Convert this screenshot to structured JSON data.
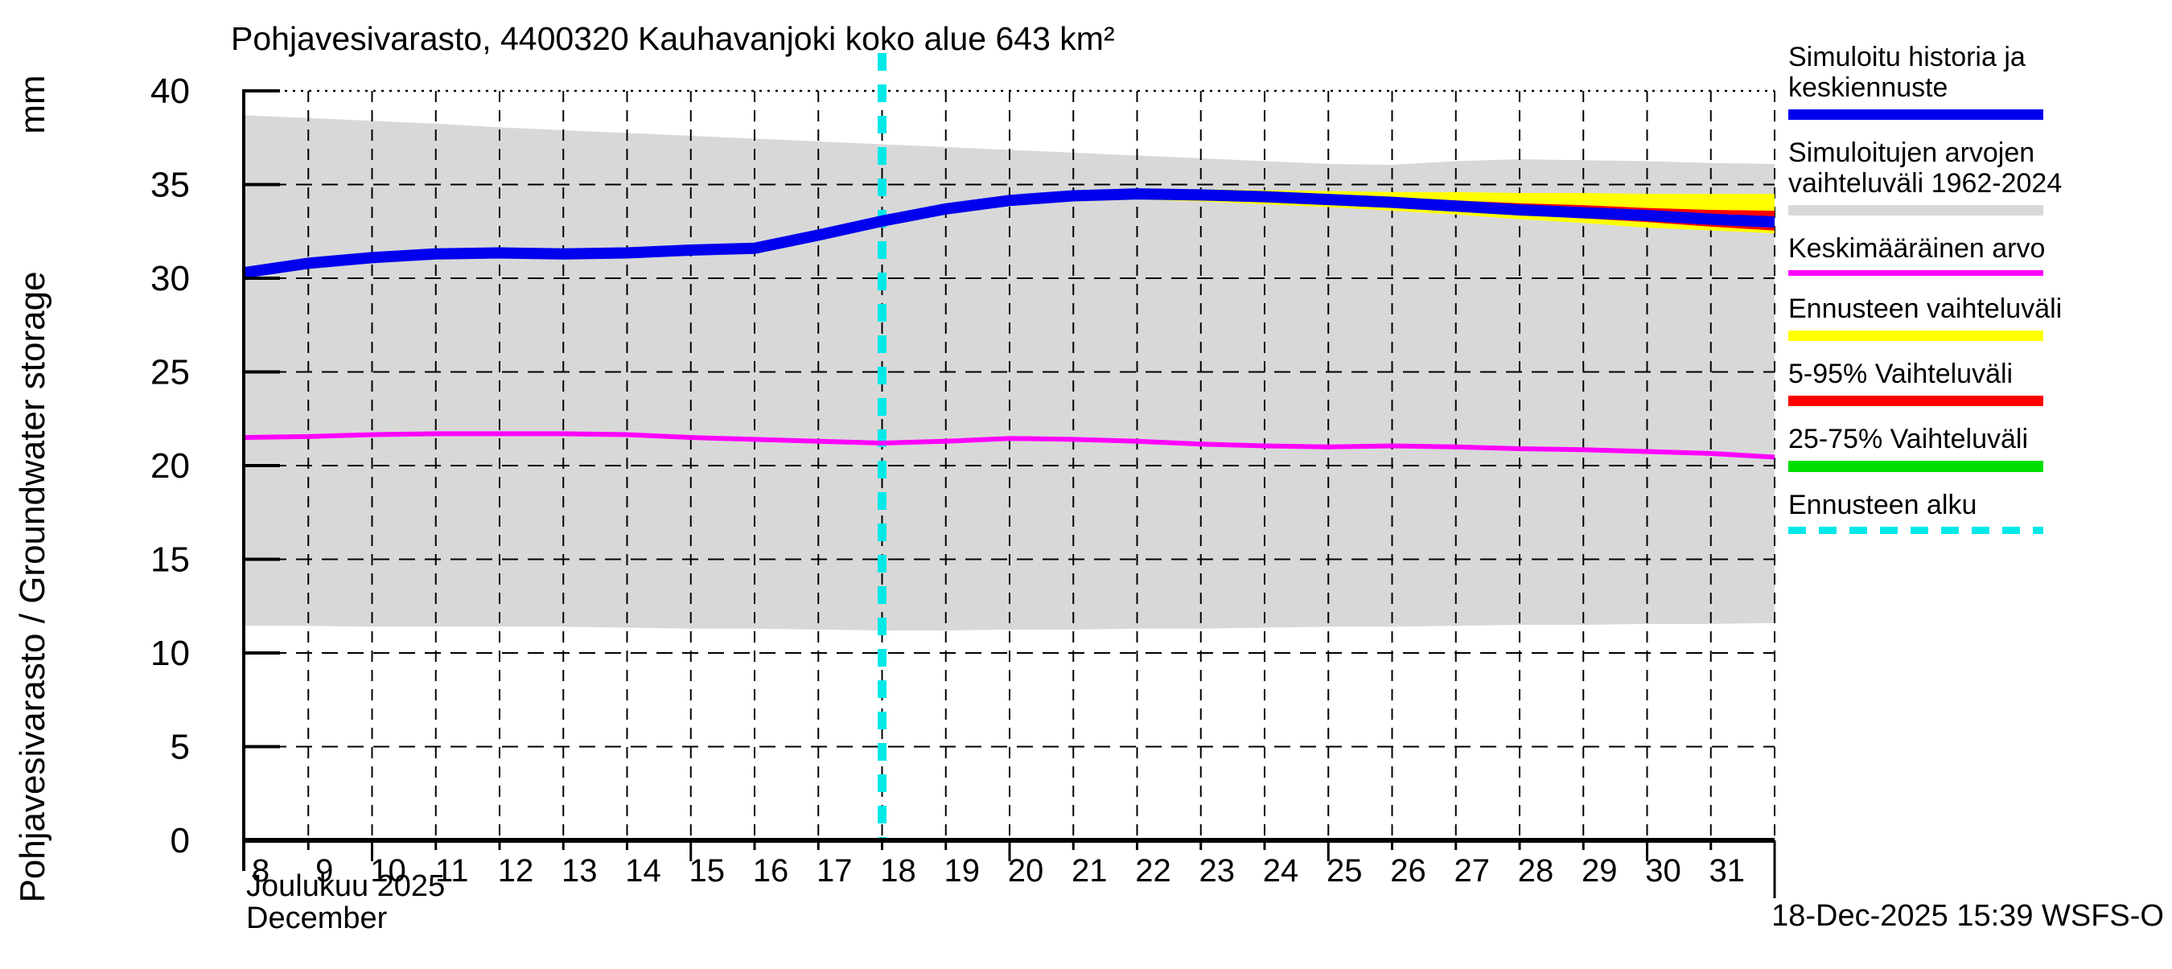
{
  "header": {
    "title": "Pohjavesivarasto, 4400320 Kauhavanjoki koko alue 643 km²"
  },
  "y_axis": {
    "label": "Pohjavesivarasto / Groundwater storage",
    "unit": "mm",
    "min": 0,
    "max": 40,
    "tick_step": 5,
    "ticks": [
      0,
      5,
      10,
      15,
      20,
      25,
      30,
      35,
      40
    ]
  },
  "x_axis": {
    "month_label_fi": "Joulukuu 2025",
    "month_label_en": "December",
    "day_labels": [
      "8",
      "9",
      "10",
      "11",
      "12",
      "13",
      "14",
      "15",
      "16",
      "17",
      "18",
      "19",
      "20",
      "21",
      "22",
      "23",
      "24",
      "25",
      "26",
      "27",
      "28",
      "29",
      "30",
      "31"
    ],
    "day_min": 8,
    "day_max": 32
  },
  "footer": {
    "timestamp": "18-Dec-2025 15:39 WSFS-O"
  },
  "colors": {
    "median_blue": "#0000ee",
    "range_gray": "#d8d8d8",
    "mean_magenta": "#ff00ff",
    "forecast_yellow": "#ffff00",
    "p5_95_red": "#ff0000",
    "p25_75_green": "#00dd00",
    "forecast_start_cyan": "#00e8e8",
    "grid_black": "#000000"
  },
  "legend": {
    "items": [
      {
        "name": "simulated-history-and-median-forecast",
        "lines": [
          "Simuloitu historia ja",
          "keskiennuste"
        ],
        "color": "#0000ee",
        "thickness": 13,
        "dashed": false
      },
      {
        "name": "simulated-range-1962-2024",
        "lines": [
          "Simuloitujen arvojen",
          "vaihteluväli 1962-2024"
        ],
        "color": "#d8d8d8",
        "thickness": 13,
        "dashed": false
      },
      {
        "name": "mean-value",
        "lines": [
          "Keskimääräinen arvo"
        ],
        "color": "#ff00ff",
        "thickness": 7,
        "dashed": false
      },
      {
        "name": "forecast-range",
        "lines": [
          "Ennusteen vaihteluväli"
        ],
        "color": "#ffff00",
        "thickness": 13,
        "dashed": false
      },
      {
        "name": "range-5-95",
        "lines": [
          "5-95% Vaihteluväli"
        ],
        "color": "#ff0000",
        "thickness": 13,
        "dashed": false
      },
      {
        "name": "range-25-75",
        "lines": [
          "25-75% Vaihteluväli"
        ],
        "color": "#00dd00",
        "thickness": 14,
        "dashed": false
      },
      {
        "name": "forecast-start",
        "lines": [
          "Ennusteen alku"
        ],
        "color": "#00e8e8",
        "thickness": 9,
        "dashed": true
      }
    ]
  },
  "chart_data": {
    "type": "line",
    "title": "Pohjavesivarasto, 4400320 Kauhavanjoki koko alue 643 km²",
    "xlabel": "Joulukuu 2025 / December",
    "ylabel": "Pohjavesivarasto / Groundwater storage (mm)",
    "x_range": [
      8,
      32
    ],
    "ylim": [
      0,
      40
    ],
    "grid": true,
    "legend_position": "right",
    "forecast_start_day": 18,
    "x": [
      8,
      9,
      10,
      11,
      12,
      13,
      14,
      15,
      16,
      17,
      18,
      19,
      20,
      21,
      22,
      23,
      24,
      25,
      26,
      27,
      28,
      29,
      30,
      31,
      32
    ],
    "series": [
      {
        "name": "Simuloitujen arvojen vaihteluväli 1962-2024",
        "type": "band",
        "color": "#d8d8d8",
        "upper": [
          38.7,
          38.55,
          38.4,
          38.25,
          38.05,
          37.9,
          37.75,
          37.6,
          37.45,
          37.3,
          37.15,
          37.0,
          36.85,
          36.7,
          36.55,
          36.4,
          36.25,
          36.1,
          36.05,
          36.25,
          36.35,
          36.3,
          36.25,
          36.15,
          36.1
        ],
        "lower": [
          11.45,
          11.45,
          11.4,
          11.4,
          11.4,
          11.4,
          11.35,
          11.3,
          11.3,
          11.25,
          11.2,
          11.2,
          11.25,
          11.25,
          11.3,
          11.3,
          11.35,
          11.4,
          11.4,
          11.45,
          11.5,
          11.5,
          11.55,
          11.55,
          11.6
        ]
      },
      {
        "name": "Keskimääräinen arvo",
        "type": "line",
        "color": "#ff00ff",
        "width": 6,
        "values": [
          21.5,
          21.55,
          21.65,
          21.7,
          21.7,
          21.7,
          21.65,
          21.5,
          21.4,
          21.3,
          21.2,
          21.3,
          21.45,
          21.4,
          21.3,
          21.15,
          21.05,
          21.0,
          21.05,
          21.0,
          20.9,
          20.85,
          20.75,
          20.65,
          20.45
        ]
      },
      {
        "name": "Simuloitu historia ja keskiennuste",
        "type": "line",
        "color": "#0000ee",
        "width": 14,
        "values": [
          30.3,
          30.8,
          31.1,
          31.3,
          31.35,
          31.3,
          31.35,
          31.5,
          31.6,
          32.3,
          33.05,
          33.7,
          34.15,
          34.4,
          34.5,
          34.45,
          34.35,
          34.2,
          34.05,
          33.85,
          33.65,
          33.5,
          33.35,
          33.15,
          33.0
        ]
      }
    ],
    "forecast_x": [
      18,
      19,
      20,
      21,
      22,
      23,
      24,
      25,
      26,
      27,
      28,
      29,
      30,
      31,
      32
    ],
    "forecast_bands": [
      {
        "name": "Ennusteen vaihteluväli",
        "color": "#ffff00",
        "upper": [
          33.05,
          33.8,
          34.35,
          34.6,
          34.75,
          34.75,
          34.7,
          34.65,
          34.6,
          34.6,
          34.55,
          34.55,
          34.5,
          34.5,
          34.5
        ],
        "lower": [
          33.05,
          33.55,
          33.9,
          34.1,
          34.2,
          34.1,
          33.95,
          33.8,
          33.6,
          33.4,
          33.15,
          32.95,
          32.7,
          32.55,
          32.4
        ]
      },
      {
        "name": "5-95% Vaihteluväli",
        "color": "#ff0000",
        "upper": [
          33.05,
          33.75,
          34.25,
          34.5,
          34.65,
          34.6,
          34.5,
          34.4,
          34.3,
          34.15,
          34.0,
          33.9,
          33.75,
          33.65,
          33.6
        ],
        "lower": [
          33.05,
          33.6,
          33.95,
          34.15,
          34.3,
          34.2,
          34.1,
          33.95,
          33.8,
          33.6,
          33.4,
          33.2,
          33.0,
          32.75,
          32.55
        ]
      },
      {
        "name": "25-75% Vaihteluväli",
        "color": "#00dd00",
        "upper": [
          33.05,
          33.75,
          34.2,
          34.45,
          34.55,
          34.5,
          34.4,
          34.3,
          34.15,
          34.0,
          33.8,
          33.65,
          33.5,
          33.35,
          33.2
        ],
        "lower": [
          33.05,
          33.65,
          34.05,
          34.3,
          34.4,
          34.35,
          34.25,
          34.1,
          33.9,
          33.7,
          33.5,
          33.3,
          33.1,
          32.95,
          32.8
        ]
      }
    ],
    "forecast_start_line": {
      "name": "Ennusteen alku",
      "color": "#00e8e8",
      "x": 18
    }
  }
}
